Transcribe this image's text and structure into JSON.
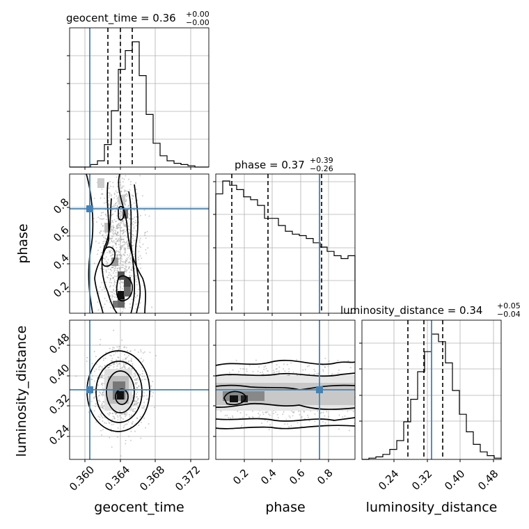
{
  "titles": {
    "gt_base": "geocent_time = 0.36",
    "gt_sup": "+0.00",
    "gt_sub": "−0.00",
    "ph_base": "phase = 0.37",
    "ph_sup": "+0.39",
    "ph_sub": "−0.26",
    "ld_base": "luminosity_distance = 0.34",
    "ld_sup": "+0.05",
    "ld_sub": "−0.04"
  },
  "axes": {
    "x": [
      "geocent_time",
      "phase",
      "luminosity_distance"
    ],
    "y": [
      "phase",
      "luminosity_distance"
    ]
  },
  "colors": {
    "truth": "#4682b4",
    "line": "#000000",
    "grid": "#b0b0b0",
    "scatter": "#9a9a9a"
  },
  "chart_data": {
    "type": "corner",
    "parameters": [
      "geocent_time",
      "phase",
      "luminosity_distance"
    ],
    "ranges": {
      "geocent_time": [
        0.3583,
        0.374
      ],
      "phase": [
        0.0,
        0.99
      ],
      "luminosity_distance": [
        0.195,
        0.53
      ]
    },
    "truths": {
      "geocent_time": 0.3604,
      "phase": 0.745,
      "luminosity_distance": 0.355
    },
    "ticks": {
      "geocent_time": [
        "0.360",
        "0.364",
        "0.368",
        "0.372"
      ],
      "phase": [
        "0.2",
        "0.4",
        "0.6",
        "0.8"
      ],
      "luminosity_distance": [
        "0.24",
        "0.32",
        "0.40",
        "0.48"
      ]
    },
    "quantiles": {
      "geocent_time": [
        0.3627,
        0.364,
        0.3653
      ],
      "phase": [
        0.11,
        0.37,
        0.76
      ],
      "luminosity_distance": [
        0.3,
        0.34,
        0.39
      ]
    },
    "histograms": {
      "geocent_time": [
        0,
        0,
        0,
        2,
        5,
        18,
        45,
        78,
        93,
        100,
        73,
        42,
        19,
        9,
        5,
        3,
        2,
        1,
        0,
        0
      ],
      "phase": [
        83,
        92,
        89,
        86,
        81,
        79,
        75,
        66,
        66,
        61,
        57,
        55,
        54,
        52,
        49,
        46,
        43,
        40,
        38,
        40
      ],
      "luminosity_distance": [
        0,
        1,
        2,
        4,
        8,
        15,
        30,
        48,
        70,
        86,
        100,
        94,
        77,
        55,
        36,
        22,
        12,
        6,
        3,
        1
      ]
    }
  }
}
